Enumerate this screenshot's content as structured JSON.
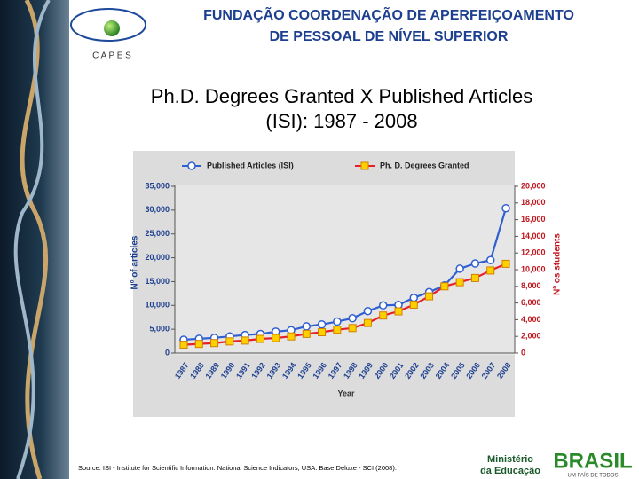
{
  "header": {
    "logo_text": "C A P E S",
    "line1": "FUNDAÇÃO COORDENAÇÃO DE APERFEIÇOAMENTO",
    "line2": "DE PESSOAL DE NÍVEL SUPERIOR"
  },
  "slide_title": [
    "Ph.D. Degrees Granted X Published Articles",
    "(ISI): 1987 - 2008"
  ],
  "chart_data": {
    "type": "line",
    "x_label": "Year",
    "y_label": "Nº of articles",
    "y2_label": "Nº os students",
    "categories": [
      "1987",
      "1988",
      "1989",
      "1990",
      "1991",
      "1992",
      "1993",
      "1994",
      "1995",
      "1996",
      "1997",
      "1998",
      "1999",
      "2000",
      "2001",
      "2002",
      "2003",
      "2004",
      "2005",
      "2006",
      "2007",
      "2008"
    ],
    "series": [
      {
        "name": "Published Articles (ISI)",
        "color": "#2f5fd0",
        "marker_color": "#ffffff",
        "marker": "circle",
        "values": [
          2800,
          3000,
          3200,
          3500,
          3800,
          4000,
          4500,
          4800,
          5600,
          6000,
          6600,
          7300,
          8800,
          10000,
          10100,
          11600,
          12800,
          14200,
          17700,
          18800,
          19500,
          30400
        ]
      },
      {
        "name": "Ph. D. Degrees Granted",
        "color": "#e8202a",
        "marker_color": "#ffd000",
        "marker": "square",
        "axis": "y2",
        "values": [
          1000,
          1100,
          1200,
          1400,
          1500,
          1700,
          1800,
          2000,
          2300,
          2500,
          2800,
          3000,
          3600,
          4500,
          5000,
          5800,
          6800,
          8000,
          8500,
          9000,
          9900,
          10700
        ]
      }
    ],
    "ylim": [
      0,
      35000
    ],
    "yticks": [
      0,
      {
        "value": 5000,
        "label": "5,000"
      },
      {
        "value": 10000,
        "label": "10,000"
      },
      {
        "value": 15000,
        "label": "15,000"
      },
      {
        "value": 20000,
        "label": "20,000"
      },
      {
        "value": 25000,
        "label": "25,000"
      },
      {
        "value": 30000,
        "label": "30,000"
      },
      {
        "value": 35000,
        "label": "35,000"
      }
    ],
    "y2lim": [
      0,
      20000
    ],
    "y2ticks": [
      0,
      {
        "value": 2000,
        "label": "2,000"
      },
      {
        "value": 4000,
        "label": "4,000"
      },
      {
        "value": 6000,
        "label": "6,000"
      },
      {
        "value": 8000,
        "label": "8,000"
      },
      {
        "value": 10000,
        "label": "10,000"
      },
      {
        "value": 12000,
        "label": "12,000"
      },
      {
        "value": 14000,
        "label": "14,000"
      },
      {
        "value": 16000,
        "label": "16,000"
      },
      {
        "value": 18000,
        "label": "18,000"
      },
      {
        "value": 20000,
        "label": "20,000"
      }
    ],
    "grid": false
  },
  "source": "Source: ISI - Institute for Scientific Information. National Science Indicators, USA. Base Deluxe - SCI (2008).",
  "footer": {
    "ministry": [
      "Ministério",
      "da Educação"
    ],
    "brand": "BRASIL",
    "tagline": "UM PAÍS DE TODOS"
  }
}
